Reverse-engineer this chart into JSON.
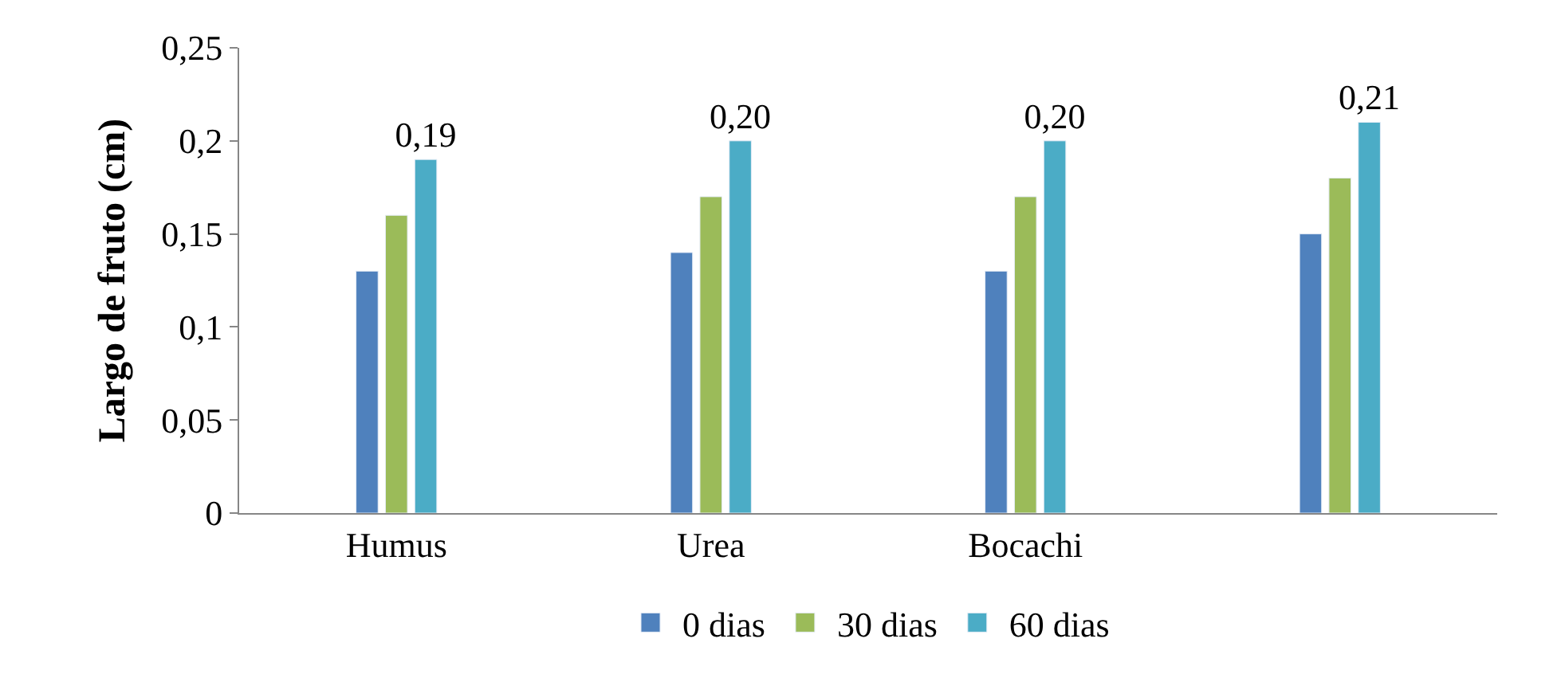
{
  "chart_data": {
    "type": "bar",
    "ylabel": "Largo de fruto (cm)",
    "categories": [
      "Humus",
      "Urea",
      "Bocachi",
      null
    ],
    "series": [
      {
        "name": "0 dias",
        "color": "#4f81bd",
        "values": [
          0.13,
          0.14,
          0.13,
          0.15
        ]
      },
      {
        "name": "30 dias",
        "color": "#9bbb59",
        "values": [
          0.16,
          0.17,
          0.17,
          0.18
        ]
      },
      {
        "name": "60 dias",
        "color": "#4bacc6",
        "values": [
          0.19,
          0.2,
          0.2,
          0.21
        ],
        "value_labels": [
          "0,19",
          "0,20",
          "0,20",
          "0,21"
        ]
      }
    ],
    "ylim": [
      0,
      0.25
    ],
    "yticks": [
      {
        "value": 0,
        "label": "0"
      },
      {
        "value": 0.05,
        "label": "0,05"
      },
      {
        "value": 0.1,
        "label": "0,1"
      },
      {
        "value": 0.15,
        "label": "0,15"
      },
      {
        "value": 0.2,
        "label": "0,2"
      },
      {
        "value": 0.25,
        "label": "0,25"
      }
    ],
    "legend": "bottom"
  }
}
